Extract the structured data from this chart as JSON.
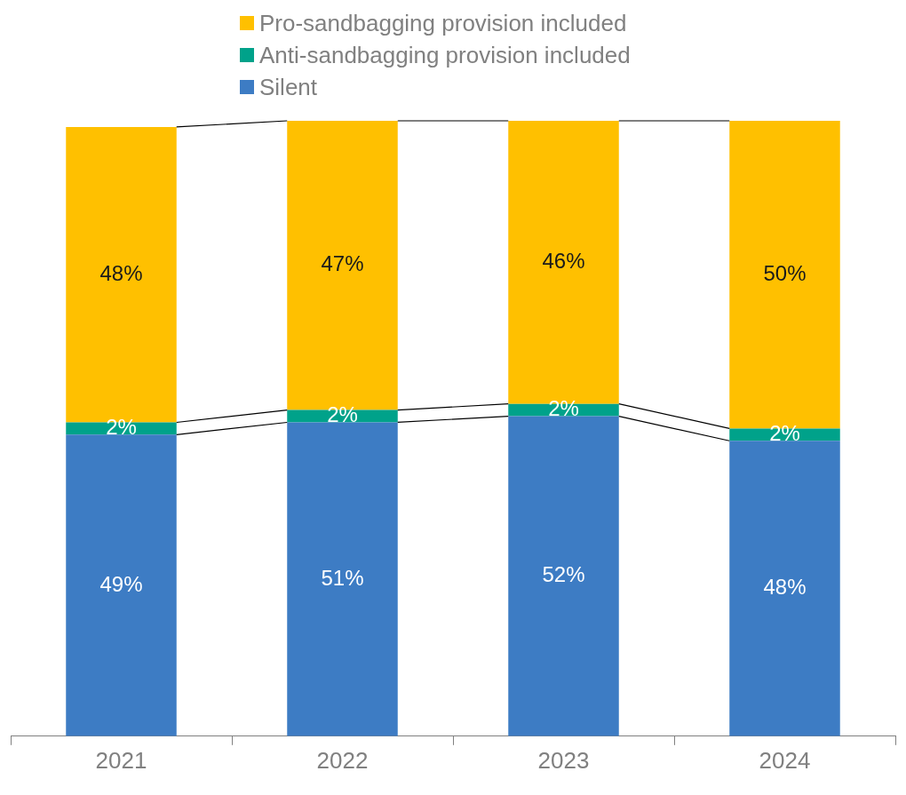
{
  "chart_data": {
    "type": "bar",
    "stacked": true,
    "categories": [
      "2021",
      "2022",
      "2023",
      "2024"
    ],
    "ylim": [
      0,
      100
    ],
    "legend": "top",
    "grid": false,
    "series": [
      {
        "name": "Silent",
        "color": "#3d7cc4",
        "values": [
          49,
          51,
          52,
          48
        ],
        "value_labels": [
          "49%",
          "51%",
          "52%",
          "48%"
        ]
      },
      {
        "name": "Anti-sandbagging provision included",
        "color": "#00a28a",
        "values": [
          2,
          2,
          2,
          2
        ],
        "value_labels": [
          "2%",
          "2%",
          "2%",
          "2%"
        ]
      },
      {
        "name": "Pro-sandbagging provision included",
        "color": "#ffc000",
        "values": [
          48,
          47,
          46,
          50
        ],
        "value_labels": [
          "48%",
          "47%",
          "46%",
          "50%"
        ]
      }
    ]
  }
}
